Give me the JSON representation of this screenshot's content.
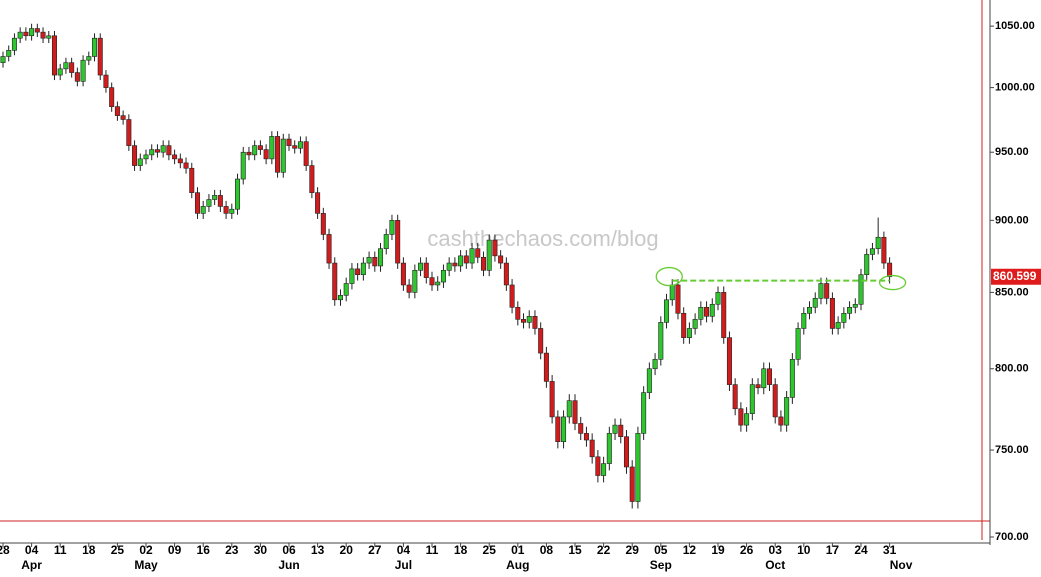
{
  "chart_data": {
    "type": "candlestick",
    "watermark": "cashthechaos.com/blog",
    "log_scale": true,
    "ylim": [
      700,
      1072
    ],
    "yticks": [
      {
        "value": 700,
        "label": "700.00"
      },
      {
        "value": 750,
        "label": "750.00"
      },
      {
        "value": 800,
        "label": "800.00"
      },
      {
        "value": 850,
        "label": "850.00"
      },
      {
        "value": 900,
        "label": "900.00"
      },
      {
        "value": 950,
        "label": "950.00"
      },
      {
        "value": 1000,
        "label": "1000.00"
      },
      {
        "value": 1050,
        "label": "1050.00"
      }
    ],
    "up_color": "#2ec52e",
    "down_color": "#d01c1c",
    "categories": [
      "28",
      null,
      null,
      null,
      null,
      "04",
      null,
      null,
      null,
      null,
      "11",
      null,
      null,
      null,
      null,
      "18",
      null,
      null,
      null,
      null,
      "25",
      null,
      null,
      null,
      null,
      "02",
      null,
      null,
      null,
      null,
      "09",
      null,
      null,
      null,
      null,
      "16",
      null,
      null,
      null,
      null,
      "23",
      null,
      null,
      null,
      null,
      "30",
      null,
      null,
      null,
      null,
      "06",
      null,
      null,
      null,
      null,
      "13",
      null,
      null,
      null,
      null,
      "20",
      null,
      null,
      null,
      null,
      "27",
      null,
      null,
      null,
      null,
      "04",
      null,
      null,
      null,
      null,
      "11",
      null,
      null,
      null,
      null,
      "18",
      null,
      null,
      null,
      null,
      "25",
      null,
      null,
      null,
      null,
      "01",
      null,
      null,
      null,
      null,
      "08",
      null,
      null,
      null,
      null,
      "15",
      null,
      null,
      null,
      null,
      "22",
      null,
      null,
      null,
      null,
      "29",
      null,
      null,
      null,
      null,
      "05",
      null,
      null,
      null,
      null,
      "12",
      null,
      null,
      null,
      null,
      "19",
      null,
      null,
      null,
      null,
      "26",
      null,
      null,
      null,
      null,
      "03",
      null,
      null,
      null,
      null,
      "10",
      null,
      null,
      null,
      null,
      "17",
      null,
      null,
      null,
      null,
      "24",
      null,
      null,
      null,
      null,
      "31"
    ],
    "months": [
      {
        "label": "Apr",
        "index": 5
      },
      {
        "label": "May",
        "index": 25
      },
      {
        "label": "Jun",
        "index": 50
      },
      {
        "label": "Jul",
        "index": 70
      },
      {
        "label": "Aug",
        "index": 90
      },
      {
        "label": "Sep",
        "index": 115
      },
      {
        "label": "Oct",
        "index": 135
      },
      {
        "label": "Nov",
        "index": 157
      }
    ],
    "ohlc": [
      [
        1020,
        1029,
        1016,
        1025
      ],
      [
        1025,
        1034,
        1021,
        1030
      ],
      [
        1030,
        1044,
        1026,
        1040
      ],
      [
        1040,
        1049,
        1036,
        1045
      ],
      [
        1045,
        1049,
        1038,
        1042
      ],
      [
        1042,
        1052,
        1038,
        1048
      ],
      [
        1048,
        1052,
        1041,
        1045
      ],
      [
        1045,
        1049,
        1036,
        1040
      ],
      [
        1040,
        1046,
        1036,
        1042
      ],
      [
        1042,
        1046,
        1006,
        1010
      ],
      [
        1010,
        1019,
        1006,
        1015
      ],
      [
        1015,
        1024,
        1011,
        1020
      ],
      [
        1020,
        1024,
        1008,
        1012
      ],
      [
        1012,
        1016,
        1001,
        1005
      ],
      [
        1005,
        1026,
        1001,
        1022
      ],
      [
        1022,
        1029,
        1018,
        1025
      ],
      [
        1025,
        1044,
        1021,
        1040
      ],
      [
        1040,
        1044,
        1006,
        1010
      ],
      [
        1010,
        1014,
        996,
        1000
      ],
      [
        1000,
        1004,
        981,
        985
      ],
      [
        985,
        989,
        974,
        978
      ],
      [
        978,
        982,
        971,
        975
      ],
      [
        975,
        979,
        951,
        955
      ],
      [
        955,
        959,
        936,
        940
      ],
      [
        940,
        949,
        936,
        945
      ],
      [
        945,
        952,
        941,
        948
      ],
      [
        948,
        956,
        944,
        952
      ],
      [
        952,
        956,
        946,
        950
      ],
      [
        950,
        959,
        946,
        955
      ],
      [
        955,
        959,
        944,
        948
      ],
      [
        948,
        952,
        941,
        945
      ],
      [
        945,
        949,
        938,
        942
      ],
      [
        942,
        946,
        934,
        938
      ],
      [
        938,
        942,
        916,
        920
      ],
      [
        920,
        924,
        901,
        905
      ],
      [
        905,
        914,
        901,
        910
      ],
      [
        910,
        919,
        906,
        915
      ],
      [
        915,
        922,
        911,
        918
      ],
      [
        918,
        922,
        906,
        910
      ],
      [
        910,
        914,
        901,
        905
      ],
      [
        905,
        912,
        901,
        908
      ],
      [
        908,
        934,
        904,
        930
      ],
      [
        930,
        954,
        926,
        950
      ],
      [
        950,
        954,
        944,
        948
      ],
      [
        948,
        959,
        944,
        955
      ],
      [
        955,
        959,
        948,
        952
      ],
      [
        952,
        956,
        941,
        945
      ],
      [
        945,
        966,
        941,
        962
      ],
      [
        962,
        966,
        931,
        935
      ],
      [
        935,
        964,
        931,
        960
      ],
      [
        960,
        964,
        951,
        955
      ],
      [
        955,
        959,
        949,
        953
      ],
      [
        953,
        962,
        949,
        958
      ],
      [
        958,
        962,
        936,
        940
      ],
      [
        940,
        944,
        916,
        920
      ],
      [
        920,
        924,
        901,
        905
      ],
      [
        905,
        909,
        886,
        890
      ],
      [
        890,
        894,
        866,
        870
      ],
      [
        870,
        874,
        841,
        845
      ],
      [
        845,
        852,
        841,
        848
      ],
      [
        848,
        860,
        844,
        856
      ],
      [
        856,
        870,
        852,
        866
      ],
      [
        866,
        870,
        858,
        862
      ],
      [
        862,
        874,
        858,
        870
      ],
      [
        870,
        878,
        866,
        874
      ],
      [
        874,
        878,
        864,
        868
      ],
      [
        868,
        884,
        864,
        880
      ],
      [
        880,
        894,
        876,
        890
      ],
      [
        890,
        904,
        886,
        900
      ],
      [
        900,
        904,
        866,
        870
      ],
      [
        870,
        874,
        851,
        855
      ],
      [
        855,
        859,
        846,
        850
      ],
      [
        850,
        869,
        846,
        865
      ],
      [
        865,
        874,
        861,
        870
      ],
      [
        870,
        874,
        856,
        860
      ],
      [
        860,
        864,
        851,
        855
      ],
      [
        855,
        861,
        851,
        857
      ],
      [
        857,
        869,
        853,
        865
      ],
      [
        865,
        874,
        861,
        870
      ],
      [
        870,
        874,
        864,
        868
      ],
      [
        868,
        879,
        864,
        875
      ],
      [
        875,
        879,
        866,
        870
      ],
      [
        870,
        884,
        866,
        880
      ],
      [
        880,
        884,
        870,
        874
      ],
      [
        874,
        878,
        861,
        865
      ],
      [
        865,
        890,
        861,
        886
      ],
      [
        886,
        890,
        871,
        875
      ],
      [
        875,
        879,
        866,
        870
      ],
      [
        870,
        874,
        851,
        855
      ],
      [
        855,
        859,
        836,
        840
      ],
      [
        840,
        844,
        828,
        832
      ],
      [
        832,
        836,
        826,
        830
      ],
      [
        830,
        838,
        826,
        834
      ],
      [
        834,
        838,
        822,
        826
      ],
      [
        826,
        830,
        806,
        810
      ],
      [
        810,
        814,
        788,
        792
      ],
      [
        792,
        796,
        766,
        770
      ],
      [
        770,
        774,
        751,
        755
      ],
      [
        755,
        774,
        751,
        770
      ],
      [
        770,
        784,
        766,
        780
      ],
      [
        780,
        784,
        762,
        766
      ],
      [
        766,
        770,
        756,
        760
      ],
      [
        760,
        764,
        752,
        756
      ],
      [
        756,
        760,
        742,
        746
      ],
      [
        746,
        750,
        731,
        735
      ],
      [
        735,
        746,
        731,
        742
      ],
      [
        742,
        764,
        738,
        760
      ],
      [
        760,
        769,
        756,
        765
      ],
      [
        765,
        769,
        754,
        758
      ],
      [
        758,
        762,
        736,
        740
      ],
      [
        740,
        744,
        716,
        720
      ],
      [
        720,
        764,
        716,
        760
      ],
      [
        760,
        789,
        756,
        785
      ],
      [
        785,
        804,
        781,
        800
      ],
      [
        800,
        810,
        796,
        806
      ],
      [
        806,
        834,
        802,
        830
      ],
      [
        830,
        849,
        826,
        845
      ],
      [
        845,
        859,
        841,
        855
      ],
      [
        855,
        859,
        832,
        836
      ],
      [
        836,
        840,
        816,
        820
      ],
      [
        820,
        830,
        816,
        826
      ],
      [
        826,
        836,
        822,
        832
      ],
      [
        832,
        844,
        828,
        840
      ],
      [
        840,
        844,
        830,
        834
      ],
      [
        834,
        846,
        830,
        842
      ],
      [
        842,
        854,
        838,
        850
      ],
      [
        850,
        854,
        816,
        820
      ],
      [
        820,
        824,
        786,
        790
      ],
      [
        790,
        794,
        771,
        775
      ],
      [
        775,
        779,
        761,
        765
      ],
      [
        765,
        776,
        761,
        772
      ],
      [
        772,
        794,
        768,
        790
      ],
      [
        790,
        794,
        784,
        788
      ],
      [
        788,
        804,
        784,
        800
      ],
      [
        800,
        804,
        786,
        790
      ],
      [
        790,
        794,
        766,
        770
      ],
      [
        770,
        774,
        761,
        765
      ],
      [
        765,
        786,
        761,
        782
      ],
      [
        782,
        810,
        778,
        806
      ],
      [
        806,
        830,
        802,
        826
      ],
      [
        826,
        840,
        822,
        836
      ],
      [
        836,
        844,
        832,
        840
      ],
      [
        840,
        850,
        836,
        846
      ],
      [
        846,
        860,
        842,
        856
      ],
      [
        856,
        860,
        842,
        846
      ],
      [
        846,
        850,
        822,
        826
      ],
      [
        826,
        834,
        822,
        830
      ],
      [
        830,
        840,
        826,
        836
      ],
      [
        836,
        844,
        832,
        840
      ],
      [
        840,
        846,
        836,
        842
      ],
      [
        842,
        866,
        838,
        862
      ],
      [
        862,
        880,
        858,
        876
      ],
      [
        876,
        884,
        872,
        880
      ],
      [
        880,
        902,
        876,
        888
      ],
      [
        888,
        892,
        866,
        870
      ],
      [
        870,
        874,
        856,
        860.599
      ]
    ],
    "resistance": {
      "value": 858,
      "from": 117,
      "to": 155,
      "color": "#66cc33"
    }
  }
}
